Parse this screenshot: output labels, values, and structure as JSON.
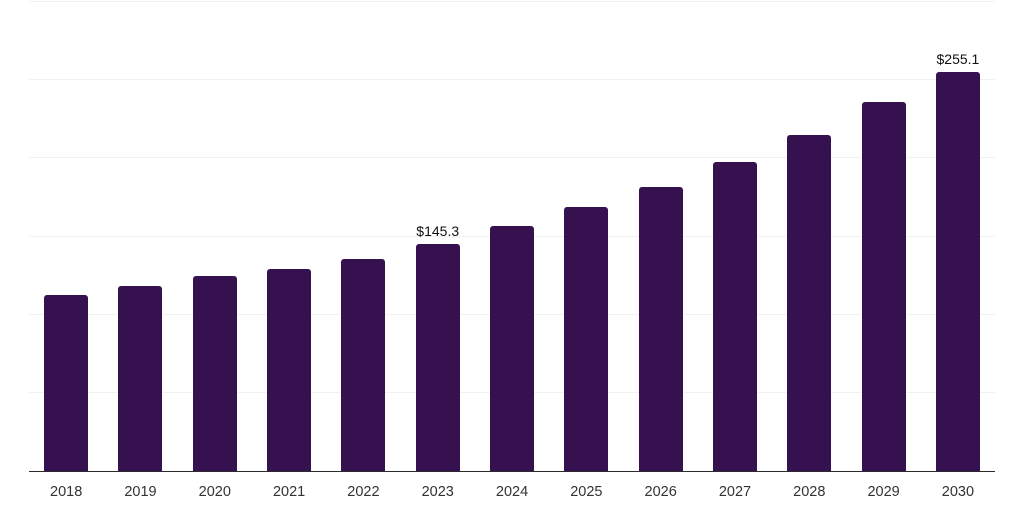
{
  "chart_data": {
    "type": "bar",
    "title": "",
    "xlabel": "",
    "ylabel": "",
    "categories": [
      "2018",
      "2019",
      "2020",
      "2021",
      "2022",
      "2023",
      "2024",
      "2025",
      "2026",
      "2027",
      "2028",
      "2029",
      "2030"
    ],
    "values": [
      112.9,
      118.4,
      124.8,
      129.2,
      135.8,
      145.3,
      157.0,
      169.0,
      181.8,
      197.4,
      214.8,
      236.1,
      255.1
    ],
    "bar_labels": [
      "",
      "",
      "",
      "",
      "",
      "$145.3",
      "",
      "",
      "",
      "",
      "",
      "",
      "$255.1"
    ],
    "ylim": [
      0,
      300
    ],
    "grid_interval": 50,
    "grid_on": true,
    "legend": "none",
    "colors": {
      "bar": "#36114F",
      "axis_line": "#2B2B2B",
      "gridline": "#F1F1F1",
      "tick_label": "#333333",
      "value_label": "#111111",
      "background": "#FFFFFF"
    }
  }
}
